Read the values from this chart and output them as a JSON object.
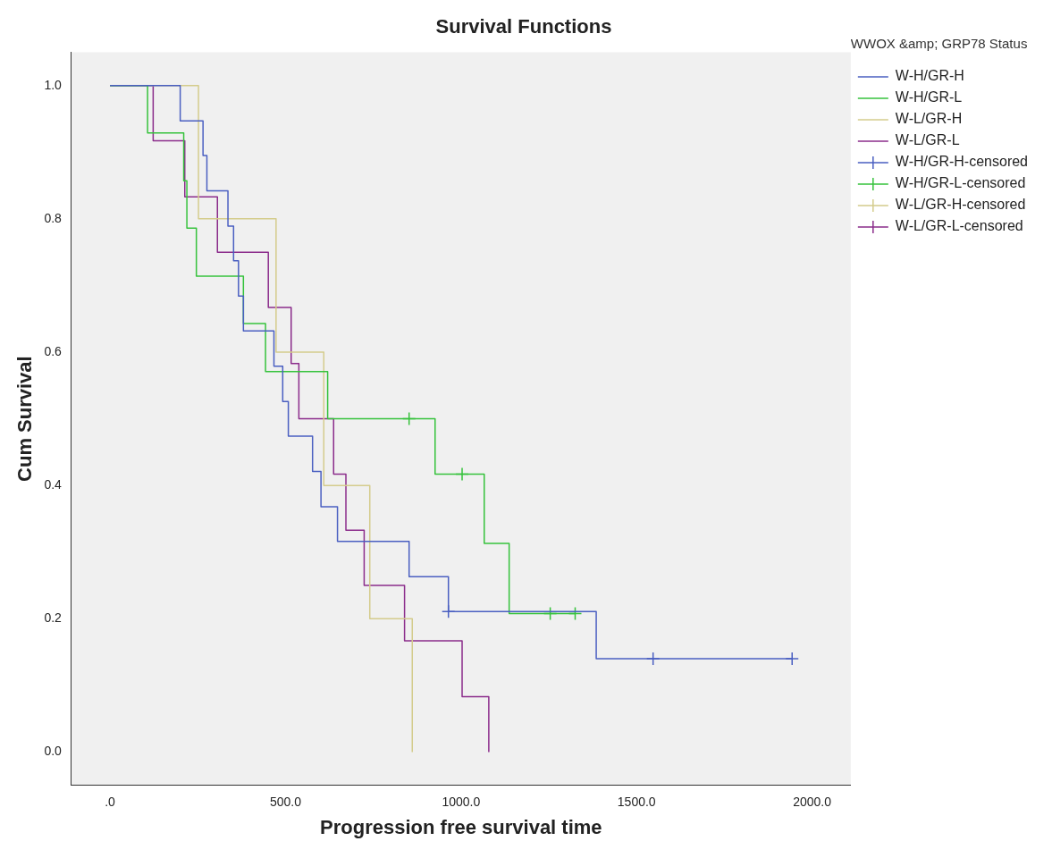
{
  "chart_data": {
    "type": "step",
    "title": "Survival Functions",
    "xlabel": "Progression free survival time",
    "ylabel": "Cum Survival",
    "legend_title": "WWOX &amp; GRP78 Status",
    "legend": "right",
    "grid": false,
    "xlim": [
      -110,
      2110
    ],
    "ylim": [
      -0.05,
      1.05
    ],
    "xticks": [
      {
        "value": 0,
        "label": ".0"
      },
      {
        "value": 500,
        "label": "500.0"
      },
      {
        "value": 1000,
        "label": "1000.0"
      },
      {
        "value": 1500,
        "label": "1500.0"
      },
      {
        "value": 2000,
        "label": "2000.0"
      }
    ],
    "yticks": [
      {
        "value": 0,
        "label": "0.0"
      },
      {
        "value": 0.2,
        "label": "0.2"
      },
      {
        "value": 0.4,
        "label": "0.4"
      },
      {
        "value": 0.6,
        "label": "0.6"
      },
      {
        "value": 0.8,
        "label": "0.8"
      },
      {
        "value": 1,
        "label": "1.0"
      }
    ],
    "series": [
      {
        "name": "W-H/GR-H",
        "color": "#4a5fc1",
        "x": [
          0,
          200,
          265,
          276,
          336,
          352,
          366,
          380,
          467,
          492,
          508,
          577,
          601,
          648,
          852,
          964,
          1385,
          1943
        ],
        "values": [
          1,
          0.947,
          0.895,
          0.842,
          0.789,
          0.737,
          0.684,
          0.632,
          0.579,
          0.526,
          0.474,
          0.421,
          0.368,
          0.316,
          0.263,
          0.211,
          0.14,
          0.14
        ]
      },
      {
        "name": "W-H/GR-L",
        "color": "#36c23c",
        "x": [
          0,
          107,
          210,
          219,
          246,
          380,
          443,
          620,
          926,
          1066,
          1137,
          1325
        ],
        "values": [
          1,
          0.929,
          0.857,
          0.786,
          0.714,
          0.643,
          0.571,
          0.5,
          0.417,
          0.313,
          0.208,
          0.208
        ]
      },
      {
        "name": "W-L/GR-H",
        "color": "#d4cc8c",
        "x": [
          0,
          252,
          473,
          609,
          740,
          861
        ],
        "values": [
          1,
          0.8,
          0.6,
          0.4,
          0.2,
          0
        ]
      },
      {
        "name": "W-L/GR-L",
        "color": "#8b2c8b",
        "x": [
          0,
          123,
          213,
          306,
          451,
          516,
          538,
          637,
          672,
          724,
          839,
          1003,
          1079
        ],
        "values": [
          1,
          0.917,
          0.833,
          0.75,
          0.667,
          0.583,
          0.5,
          0.417,
          0.333,
          0.25,
          0.167,
          0.083,
          0
        ]
      },
      {
        "name": "W-H/GR-H-censored",
        "type": "scatter",
        "marker": "cross",
        "color": "#4a5fc1",
        "x": [
          964,
          1547,
          1943
        ],
        "values": [
          0.211,
          0.14,
          0.14
        ]
      },
      {
        "name": "W-H/GR-L-censored",
        "type": "scatter",
        "marker": "cross",
        "color": "#36c23c",
        "x": [
          852,
          1003,
          1254,
          1325
        ],
        "values": [
          0.5,
          0.417,
          0.208,
          0.208
        ]
      },
      {
        "name": "W-L/GR-H-censored",
        "type": "scatter",
        "marker": "cross",
        "color": "#d4cc8c"
      },
      {
        "name": "W-L/GR-L-censored",
        "type": "scatter",
        "marker": "cross",
        "color": "#8b2c8b"
      }
    ]
  }
}
